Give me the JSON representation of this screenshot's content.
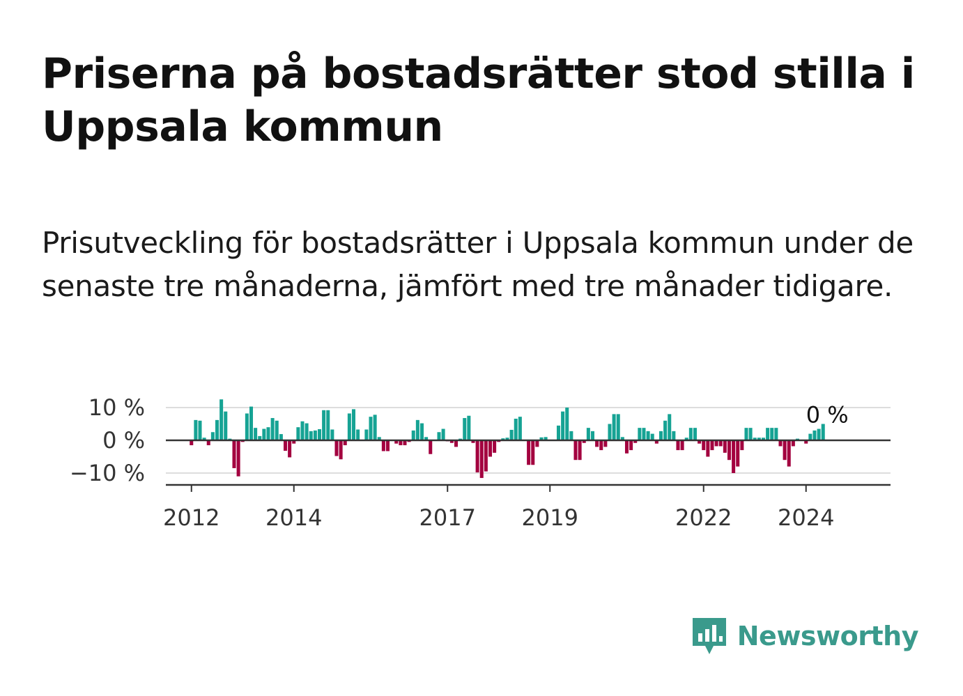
{
  "title": "Priserna på bostadsrätter stod stilla i Uppsala kommun",
  "subtitle": "Prisutveckling för bostadsrätter i Uppsala kommun under de senaste tre månaderna, jämfört med tre månader tidigare.",
  "brand": {
    "name": "Newsworthy",
    "color": "#3a9a8c"
  },
  "colors": {
    "positive": "#16a394",
    "negative": "#a3003f",
    "grid": "#dddddd",
    "zero_line": "#333333"
  },
  "chart_data": {
    "type": "bar",
    "xlabel": "",
    "ylabel": "",
    "ylim": [
      -14,
      12
    ],
    "y_ticks": [
      10,
      0,
      -10
    ],
    "y_tick_labels": [
      "10 %",
      "0 %",
      "−10 %"
    ],
    "x_ticks": [
      2012,
      2014,
      2017,
      2019,
      2022,
      2024
    ],
    "x_tick_labels": [
      "2012",
      "2014",
      "2017",
      "2019",
      "2022",
      "2024"
    ],
    "x_range": [
      2011.5,
      2025.65
    ],
    "start_year": 2012,
    "annotation": {
      "text": "0 %"
    },
    "series": [
      {
        "values": [
          -1.5,
          6.2,
          6,
          0.8,
          -1.5,
          2.5,
          6.2,
          12.5,
          8.8,
          0.5,
          -8.5,
          -11,
          -0.5,
          8.2,
          10.3,
          3.8,
          1.3,
          3.5,
          4,
          6.8,
          6,
          1.9,
          -3.2,
          -5.2,
          -1,
          4,
          5.8,
          5.2,
          2.8,
          3,
          3.4,
          9.2,
          9.2,
          3.3,
          -4.8,
          -5.8,
          -1.5,
          8.2,
          9.5,
          3.3,
          0,
          3.3,
          7.2,
          7.8,
          1,
          -3.3,
          -3.3,
          0,
          -1,
          -1.5,
          -1.5,
          -0.5,
          3,
          6.2,
          5.2,
          1,
          -4.2,
          0,
          2.5,
          3.5,
          -0.3,
          -0.8,
          -2,
          0.5,
          6.8,
          7.5,
          -0.8,
          -9.8,
          -11.5,
          -9.5,
          -5,
          -3.8,
          -0.5,
          0.6,
          0.8,
          3.2,
          6.6,
          7.2,
          0,
          -7.5,
          -7.5,
          -2,
          0.9,
          1,
          0,
          0,
          4.5,
          8.8,
          10,
          2.8,
          -6,
          -6,
          -0.8,
          3.8,
          2.8,
          -2,
          -3,
          -2,
          5,
          8,
          8,
          1,
          -4,
          -3,
          -0.8,
          3.8,
          3.8,
          2.8,
          2,
          -1,
          2.8,
          6,
          8,
          2.8,
          -3,
          -3,
          0.8,
          3.8,
          3.8,
          -1,
          -3,
          -5,
          -3,
          -1.8,
          -1.8,
          -3.8,
          -6,
          -10,
          -8,
          -3,
          3.8,
          3.8,
          0.8,
          0.8,
          0.8,
          3.8,
          3.8,
          3.8,
          -1.8,
          -6,
          -8,
          -1.8,
          0.5,
          0,
          -1,
          2,
          3,
          3.5,
          5
        ]
      }
    ]
  }
}
